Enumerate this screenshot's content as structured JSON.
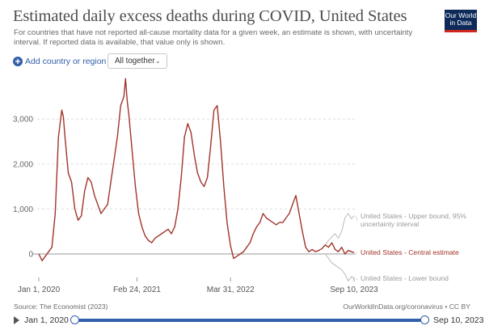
{
  "header": {
    "title": "Estimated daily excess deaths during COVID, United States",
    "subtitle": "For countries that have not reported all-cause mortality data for a given week, an estimate is shown, with uncertainty interval. If reported data is available, that value only is shown.",
    "logo_line1": "Our World",
    "logo_line2": "in Data"
  },
  "controls": {
    "add_country_label": "Add country or region",
    "dropdown_value": "All together",
    "add_icon": "plus-circle-icon",
    "dropdown_icon": "chevron-down-icon"
  },
  "footer": {
    "source": "Source: The Economist (2023)",
    "license": "OurWorldInData.org/coronavirus • CC BY"
  },
  "timeline": {
    "start_label": "Jan 1, 2020",
    "end_label": "Sep 10, 2023",
    "play_icon": "play-icon"
  },
  "colors": {
    "central": "#a1342a",
    "bounds": "#b9b9b9",
    "accent": "#3360a9",
    "grid": "#dddddd"
  },
  "chart_data": {
    "type": "line",
    "title": "Estimated daily excess deaths during COVID, United States",
    "y_ticks": [
      0,
      1000,
      2000,
      3000
    ],
    "y_tick_labels": [
      "0",
      "1,000",
      "2,000",
      "3,000"
    ],
    "x_tick_labels": [
      "Jan 1, 2020",
      "Feb 24, 2021",
      "Mar 31, 2022",
      "Sep 10, 2023"
    ],
    "x_tick_dates": [
      "2020-01-01",
      "2021-02-24",
      "2022-03-31",
      "2023-09-10"
    ],
    "xlim": [
      "2020-01-01",
      "2023-09-10"
    ],
    "ylim": [
      -600,
      4000
    ],
    "grid": "horizontal dashed",
    "series": [
      {
        "name": "United States - Central estimate",
        "x": [
          "2020-01-01",
          "2020-01-15",
          "2020-01-29",
          "2020-02-12",
          "2020-02-26",
          "2020-03-11",
          "2020-03-25",
          "2020-04-08",
          "2020-04-15",
          "2020-04-22",
          "2020-05-06",
          "2020-05-20",
          "2020-06-03",
          "2020-06-17",
          "2020-07-01",
          "2020-07-15",
          "2020-07-29",
          "2020-08-12",
          "2020-08-26",
          "2020-09-09",
          "2020-09-23",
          "2020-10-07",
          "2020-10-21",
          "2020-11-04",
          "2020-11-18",
          "2020-12-02",
          "2020-12-16",
          "2020-12-30",
          "2021-01-06",
          "2021-01-13",
          "2021-01-20",
          "2021-02-03",
          "2021-02-17",
          "2021-03-03",
          "2021-03-17",
          "2021-03-31",
          "2021-04-14",
          "2021-04-28",
          "2021-05-12",
          "2021-05-26",
          "2021-06-09",
          "2021-06-23",
          "2021-07-07",
          "2021-07-21",
          "2021-08-04",
          "2021-08-18",
          "2021-09-01",
          "2021-09-15",
          "2021-09-29",
          "2021-10-13",
          "2021-10-27",
          "2021-11-10",
          "2021-11-24",
          "2021-12-08",
          "2021-12-22",
          "2022-01-05",
          "2022-01-19",
          "2022-02-02",
          "2022-02-16",
          "2022-03-02",
          "2022-03-16",
          "2022-03-30",
          "2022-04-13",
          "2022-04-27",
          "2022-05-11",
          "2022-05-25",
          "2022-06-08",
          "2022-06-22",
          "2022-07-06",
          "2022-07-20",
          "2022-08-03",
          "2022-08-17",
          "2022-08-31",
          "2022-09-14",
          "2022-09-28",
          "2022-10-12",
          "2022-10-26",
          "2022-11-09",
          "2022-11-23",
          "2022-12-07",
          "2022-12-21",
          "2023-01-04",
          "2023-01-18",
          "2023-02-01",
          "2023-02-15",
          "2023-03-01",
          "2023-03-15",
          "2023-03-29",
          "2023-04-12",
          "2023-04-26",
          "2023-05-10",
          "2023-05-24",
          "2023-06-07",
          "2023-06-21",
          "2023-07-05",
          "2023-07-19",
          "2023-08-02",
          "2023-08-16",
          "2023-08-30",
          "2023-09-10"
        ],
        "y": [
          0,
          -150,
          -50,
          50,
          150,
          900,
          2600,
          3200,
          3050,
          2600,
          1800,
          1600,
          1000,
          750,
          850,
          1400,
          1700,
          1600,
          1300,
          1100,
          900,
          1000,
          1100,
          1600,
          2100,
          2600,
          3300,
          3500,
          3900,
          3400,
          3100,
          2300,
          1500,
          900,
          600,
          400,
          300,
          250,
          350,
          400,
          450,
          500,
          550,
          450,
          600,
          1000,
          1700,
          2600,
          2900,
          2700,
          2200,
          1800,
          1600,
          1500,
          1700,
          2400,
          3200,
          3300,
          2500,
          1500,
          700,
          200,
          -100,
          -50,
          0,
          50,
          150,
          250,
          450,
          600,
          700,
          900,
          800,
          750,
          700,
          650,
          700,
          700,
          800,
          900,
          1100,
          1300,
          900,
          500,
          150,
          50,
          100,
          50,
          80,
          120,
          200,
          150,
          250,
          100,
          50,
          150,
          0,
          80,
          50,
          30
        ],
        "color": "#a1342a"
      },
      {
        "name": "United States - Upper bound, 95% uncertainty interval",
        "x": [
          "2023-05-10",
          "2023-05-24",
          "2023-06-07",
          "2023-06-21",
          "2023-07-05",
          "2023-07-19",
          "2023-08-02",
          "2023-08-16",
          "2023-08-30",
          "2023-09-10"
        ],
        "y": [
          200,
          300,
          380,
          450,
          350,
          500,
          800,
          900,
          780,
          850
        ],
        "color": "#b9b9b9"
      },
      {
        "name": "United States - Lower bound",
        "x": [
          "2023-05-10",
          "2023-05-24",
          "2023-06-07",
          "2023-06-21",
          "2023-07-05",
          "2023-07-19",
          "2023-08-02",
          "2023-08-16",
          "2023-08-30",
          "2023-09-10"
        ],
        "y": [
          0,
          -100,
          -200,
          -250,
          -300,
          -350,
          -450,
          -600,
          -500,
          -550
        ],
        "color": "#b9b9b9"
      }
    ],
    "legend": "right, labels at line ends",
    "legend_labels": [
      "United States - Upper bound, 95% uncertainty interval",
      "United States - Central estimate",
      "United States - Lower bound"
    ]
  }
}
